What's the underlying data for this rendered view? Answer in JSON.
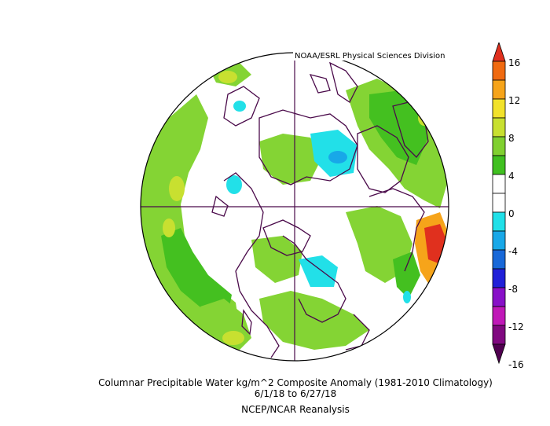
{
  "credit": "NOAA/ESRL Physical Sciences Division",
  "title_line1": "Columnar Precipitable Water kg/m^2 Composite Anomaly (1981-2010 Climatology)",
  "title_line2": "6/1/18  to 6/27/18",
  "title_line3": "NCEP/NCAR Reanalysis",
  "colorbar": {
    "ticks": [
      "16",
      "12",
      "8",
      "4",
      "0",
      "-4",
      "-8",
      "-12",
      "-16"
    ],
    "colors": [
      "#e0301e",
      "#f06a10",
      "#f6a41a",
      "#f2e22a",
      "#c8e030",
      "#80d030",
      "#40c020",
      "#ffffff",
      "#ffffff",
      "#20e0e8",
      "#18a8e8",
      "#1868d8",
      "#2020d8",
      "#8810c8",
      "#c018b8",
      "#800880",
      "#500050"
    ]
  },
  "map": {
    "projection": "north-polar-stereographic",
    "palette": {
      "lightgreen": "#84d434",
      "green": "#44c020",
      "yellow": "#c8e030",
      "cyan": "#22e0e8",
      "blue": "#18a8e8",
      "orange": "#f6a41a",
      "red": "#e0301e",
      "outline": "#4a0a4a"
    }
  }
}
